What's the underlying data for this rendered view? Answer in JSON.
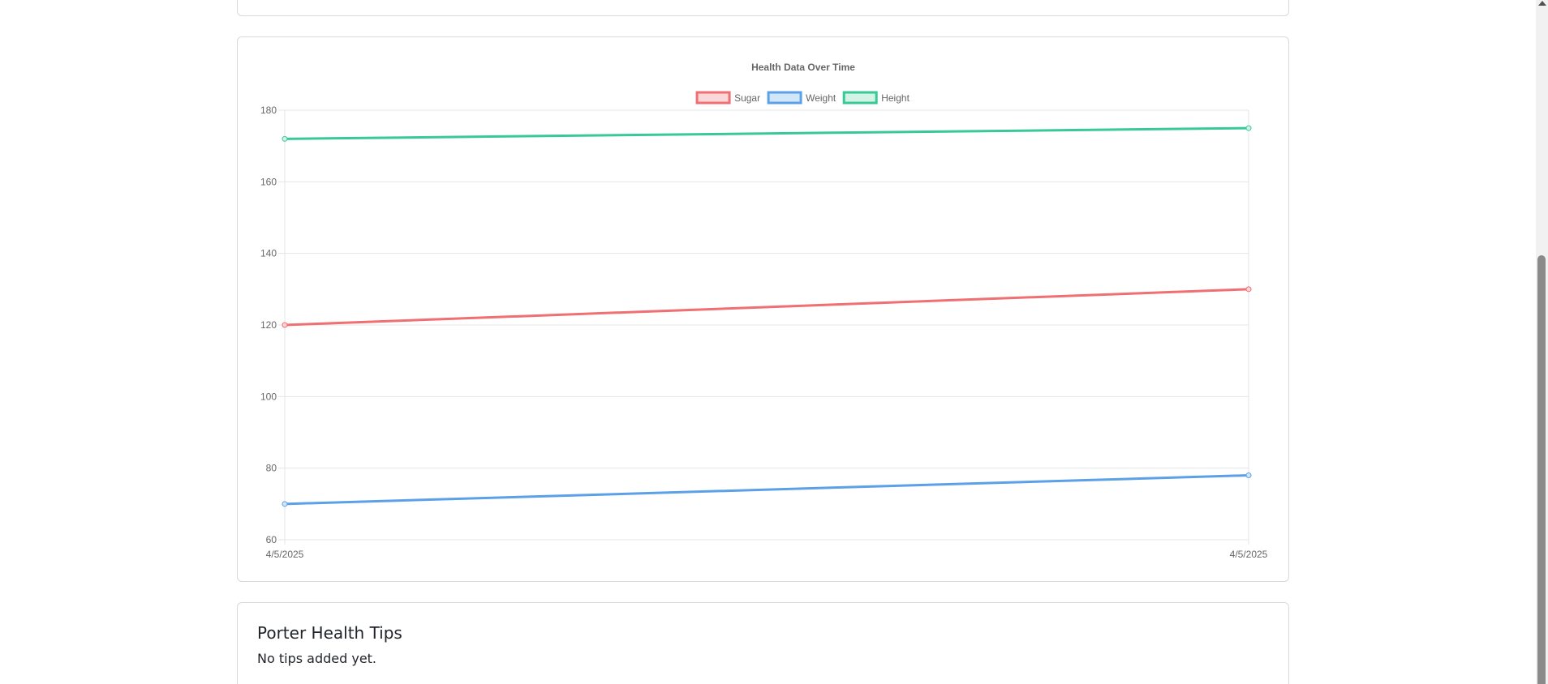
{
  "tips": {
    "title": "Porter Health Tips",
    "empty_message": "No tips added yet."
  },
  "chart_data": {
    "type": "line",
    "title": "Health Data Over Time",
    "categories": [
      "4/5/2025",
      "4/5/2025"
    ],
    "ylim": [
      60,
      180
    ],
    "yticks": [
      60,
      80,
      100,
      120,
      140,
      160,
      180
    ],
    "grid": true,
    "legend_position": "top",
    "series": [
      {
        "name": "Sugar",
        "values": [
          120,
          130
        ],
        "color": "#ef6f72",
        "fill": "#fbd7d9"
      },
      {
        "name": "Weight",
        "values": [
          70,
          78
        ],
        "color": "#5ca0e8",
        "fill": "#d2e6fa"
      },
      {
        "name": "Height",
        "values": [
          172,
          175
        ],
        "color": "#38c996",
        "fill": "#d2f3e6"
      }
    ]
  }
}
